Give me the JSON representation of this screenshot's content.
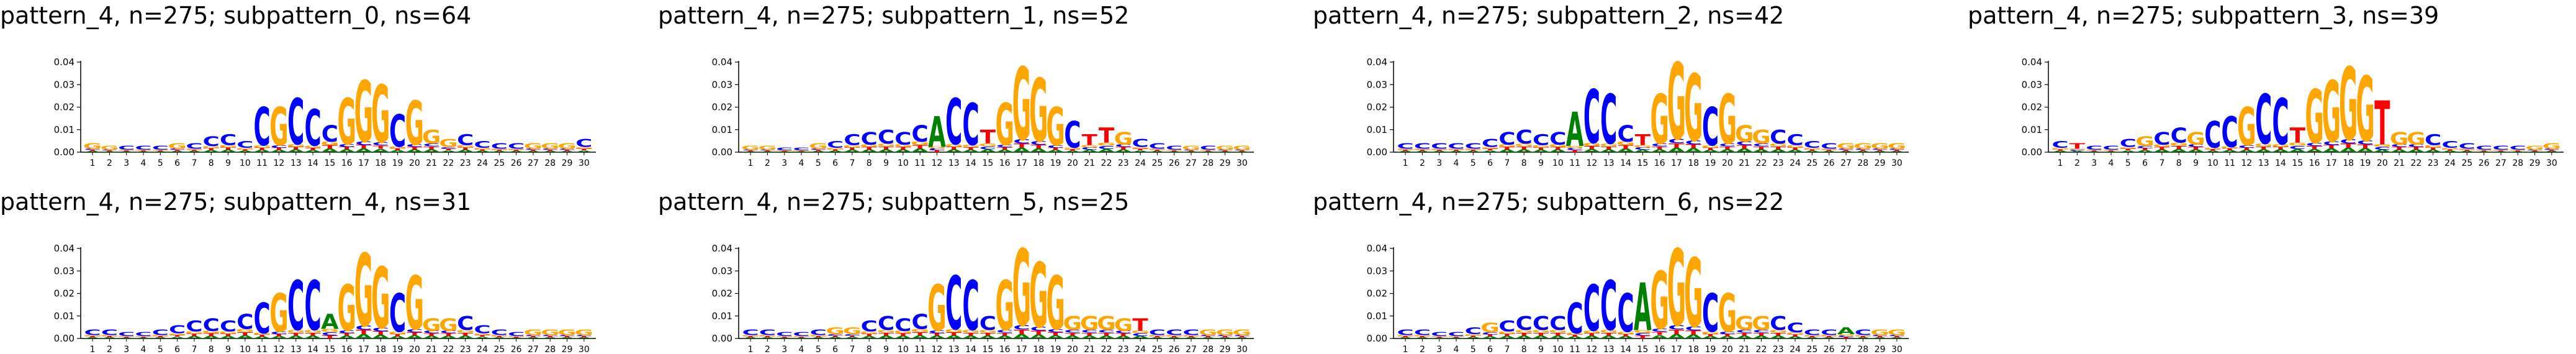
{
  "palette": {
    "A": "#008000",
    "C": "#0000FF",
    "G": "#FFA500",
    "T": "#FF0000",
    "axis": "#000000"
  },
  "chart_data": [
    {
      "type": "sequence-logo",
      "title": "pattern_4, n=275; subpattern_0, ns=64",
      "xlabel": "",
      "ylabel": "",
      "ylim": [
        0,
        0.04
      ],
      "yticks": [
        "0.00",
        "0.01",
        "0.02",
        "0.03",
        "0.04"
      ],
      "positions": [
        1,
        2,
        3,
        4,
        5,
        6,
        7,
        8,
        9,
        10,
        11,
        12,
        13,
        14,
        15,
        16,
        17,
        18,
        19,
        20,
        21,
        22,
        23,
        24,
        25,
        26,
        27,
        28,
        29,
        30
      ],
      "consensus": [
        "G",
        "G",
        "C",
        "C",
        "C",
        "G",
        "C",
        "C",
        "C",
        "C",
        "C",
        "G",
        "C",
        "C",
        "C",
        "G",
        "G",
        "G",
        "C",
        "G",
        "G",
        "G",
        "C",
        "C",
        "C",
        "C",
        "G",
        "G",
        "G",
        "C"
      ],
      "letter_heights": [
        0.004,
        0.003,
        0.003,
        0.003,
        0.003,
        0.004,
        0.004,
        0.007,
        0.008,
        0.005,
        0.02,
        0.02,
        0.024,
        0.019,
        0.012,
        0.024,
        0.032,
        0.03,
        0.017,
        0.023,
        0.01,
        0.006,
        0.008,
        0.005,
        0.004,
        0.004,
        0.004,
        0.004,
        0.004,
        0.006
      ],
      "grid": false,
      "legend": "none"
    },
    {
      "type": "sequence-logo",
      "title": "pattern_4, n=275; subpattern_1, ns=52",
      "xlabel": "",
      "ylabel": "",
      "ylim": [
        0,
        0.04
      ],
      "yticks": [
        "0.00",
        "0.01",
        "0.02",
        "0.03",
        "0.04"
      ],
      "positions": [
        1,
        2,
        3,
        4,
        5,
        6,
        7,
        8,
        9,
        10,
        11,
        12,
        13,
        14,
        15,
        16,
        17,
        18,
        19,
        20,
        21,
        22,
        23,
        24,
        25,
        26,
        27,
        28,
        29,
        30
      ],
      "consensus": [
        "G",
        "G",
        "C",
        "C",
        "G",
        "C",
        "C",
        "C",
        "C",
        "C",
        "C",
        "A",
        "C",
        "C",
        "T",
        "G",
        "G",
        "G",
        "G",
        "C",
        "T",
        "T",
        "G",
        "C",
        "C",
        "C",
        "G",
        "C",
        "G",
        "G"
      ],
      "letter_heights": [
        0.003,
        0.003,
        0.002,
        0.002,
        0.004,
        0.005,
        0.008,
        0.009,
        0.01,
        0.009,
        0.012,
        0.016,
        0.024,
        0.022,
        0.01,
        0.022,
        0.038,
        0.033,
        0.02,
        0.014,
        0.008,
        0.011,
        0.009,
        0.006,
        0.004,
        0.003,
        0.003,
        0.003,
        0.003,
        0.003
      ],
      "grid": false,
      "legend": "none"
    },
    {
      "type": "sequence-logo",
      "title": "pattern_4, n=275; subpattern_2, ns=42",
      "xlabel": "",
      "ylabel": "",
      "ylim": [
        0,
        0.04
      ],
      "yticks": [
        "0.00",
        "0.01",
        "0.02",
        "0.03",
        "0.04"
      ],
      "positions": [
        1,
        2,
        3,
        4,
        5,
        6,
        7,
        8,
        9,
        10,
        11,
        12,
        13,
        14,
        15,
        16,
        17,
        18,
        19,
        20,
        21,
        22,
        23,
        24,
        25,
        26,
        27,
        28,
        29,
        30
      ],
      "consensus": [
        "C",
        "C",
        "C",
        "C",
        "C",
        "C",
        "C",
        "C",
        "C",
        "C",
        "A",
        "C",
        "C",
        "C",
        "T",
        "G",
        "G",
        "G",
        "C",
        "G",
        "G",
        "G",
        "C",
        "C",
        "C",
        "C",
        "G",
        "G",
        "G",
        "G"
      ],
      "letter_heights": [
        0.004,
        0.004,
        0.004,
        0.004,
        0.004,
        0.006,
        0.009,
        0.01,
        0.008,
        0.009,
        0.018,
        0.028,
        0.026,
        0.012,
        0.008,
        0.026,
        0.04,
        0.035,
        0.02,
        0.026,
        0.012,
        0.01,
        0.01,
        0.008,
        0.005,
        0.004,
        0.004,
        0.004,
        0.004,
        0.004
      ],
      "grid": false,
      "legend": "none"
    },
    {
      "type": "sequence-logo",
      "title": "pattern_4, n=275; subpattern_3, ns=39",
      "xlabel": "",
      "ylabel": "",
      "ylim": [
        0,
        0.04
      ],
      "yticks": [
        "0.00",
        "0.01",
        "0.02",
        "0.03",
        "0.04"
      ],
      "positions": [
        1,
        2,
        3,
        4,
        5,
        6,
        7,
        8,
        9,
        10,
        11,
        12,
        13,
        14,
        15,
        16,
        17,
        18,
        19,
        20,
        21,
        22,
        23,
        24,
        25,
        26,
        27,
        28,
        29,
        30
      ],
      "consensus": [
        "C",
        "T",
        "C",
        "C",
        "C",
        "G",
        "C",
        "C",
        "G",
        "C",
        "C",
        "G",
        "C",
        "C",
        "T",
        "G",
        "G",
        "G",
        "G",
        "T",
        "G",
        "G",
        "C",
        "C",
        "C",
        "C",
        "C",
        "C",
        "G",
        "G"
      ],
      "letter_heights": [
        0.005,
        0.004,
        0.003,
        0.003,
        0.006,
        0.007,
        0.009,
        0.011,
        0.009,
        0.014,
        0.016,
        0.02,
        0.026,
        0.024,
        0.011,
        0.028,
        0.032,
        0.038,
        0.034,
        0.023,
        0.009,
        0.009,
        0.008,
        0.005,
        0.004,
        0.003,
        0.003,
        0.003,
        0.003,
        0.004
      ],
      "grid": false,
      "legend": "none"
    },
    {
      "type": "sequence-logo",
      "title": "pattern_4, n=275; subpattern_4, ns=31",
      "xlabel": "",
      "ylabel": "",
      "ylim": [
        0,
        0.04
      ],
      "yticks": [
        "0.00",
        "0.01",
        "0.02",
        "0.03",
        "0.04"
      ],
      "positions": [
        1,
        2,
        3,
        4,
        5,
        6,
        7,
        8,
        9,
        10,
        11,
        12,
        13,
        14,
        15,
        16,
        17,
        18,
        19,
        20,
        21,
        22,
        23,
        24,
        25,
        26,
        27,
        28,
        29,
        30
      ],
      "consensus": [
        "C",
        "C",
        "C",
        "C",
        "C",
        "C",
        "C",
        "C",
        "C",
        "C",
        "C",
        "G",
        "C",
        "C",
        "A",
        "G",
        "G",
        "G",
        "C",
        "G",
        "G",
        "G",
        "C",
        "C",
        "C",
        "C",
        "G",
        "G",
        "G",
        "G"
      ],
      "letter_heights": [
        0.004,
        0.004,
        0.003,
        0.003,
        0.004,
        0.006,
        0.008,
        0.009,
        0.008,
        0.011,
        0.016,
        0.02,
        0.026,
        0.026,
        0.011,
        0.024,
        0.038,
        0.032,
        0.02,
        0.028,
        0.009,
        0.009,
        0.01,
        0.006,
        0.004,
        0.003,
        0.004,
        0.004,
        0.004,
        0.004
      ],
      "grid": false,
      "legend": "none"
    },
    {
      "type": "sequence-logo",
      "title": "pattern_4, n=275; subpattern_5, ns=25",
      "xlabel": "",
      "ylabel": "",
      "ylim": [
        0,
        0.04
      ],
      "yticks": [
        "0.00",
        "0.01",
        "0.02",
        "0.03",
        "0.04"
      ],
      "positions": [
        1,
        2,
        3,
        4,
        5,
        6,
        7,
        8,
        9,
        10,
        11,
        12,
        13,
        14,
        15,
        16,
        17,
        18,
        19,
        20,
        21,
        22,
        23,
        24,
        25,
        26,
        27,
        28,
        29,
        30
      ],
      "consensus": [
        "C",
        "C",
        "C",
        "C",
        "C",
        "G",
        "G",
        "C",
        "C",
        "C",
        "C",
        "G",
        "C",
        "C",
        "C",
        "G",
        "G",
        "G",
        "G",
        "G",
        "G",
        "G",
        "G",
        "T",
        "C",
        "C",
        "C",
        "G",
        "G",
        "G"
      ],
      "letter_heights": [
        0.004,
        0.004,
        0.003,
        0.003,
        0.004,
        0.005,
        0.005,
        0.008,
        0.01,
        0.009,
        0.011,
        0.024,
        0.028,
        0.026,
        0.01,
        0.026,
        0.04,
        0.034,
        0.028,
        0.01,
        0.01,
        0.01,
        0.009,
        0.009,
        0.004,
        0.004,
        0.004,
        0.004,
        0.004,
        0.004
      ],
      "grid": false,
      "legend": "none"
    },
    {
      "type": "sequence-logo",
      "title": "pattern_4, n=275; subpattern_6, ns=22",
      "xlabel": "",
      "ylabel": "",
      "ylim": [
        0,
        0.04
      ],
      "yticks": [
        "0.00",
        "0.01",
        "0.02",
        "0.03",
        "0.04"
      ],
      "positions": [
        1,
        2,
        3,
        4,
        5,
        6,
        7,
        8,
        9,
        10,
        11,
        12,
        13,
        14,
        15,
        16,
        17,
        18,
        19,
        20,
        21,
        22,
        23,
        24,
        25,
        26,
        27,
        28,
        29,
        30
      ],
      "consensus": [
        "C",
        "C",
        "C",
        "C",
        "C",
        "G",
        "C",
        "C",
        "C",
        "C",
        "C",
        "C",
        "C",
        "C",
        "A",
        "G",
        "G",
        "G",
        "C",
        "G",
        "G",
        "G",
        "C",
        "C",
        "C",
        "C",
        "A",
        "C",
        "G",
        "G"
      ],
      "letter_heights": [
        0.004,
        0.004,
        0.003,
        0.003,
        0.005,
        0.007,
        0.008,
        0.01,
        0.01,
        0.01,
        0.016,
        0.024,
        0.026,
        0.02,
        0.025,
        0.03,
        0.04,
        0.036,
        0.02,
        0.02,
        0.01,
        0.01,
        0.01,
        0.007,
        0.004,
        0.004,
        0.005,
        0.004,
        0.004,
        0.004
      ],
      "grid": false,
      "legend": "none"
    }
  ]
}
